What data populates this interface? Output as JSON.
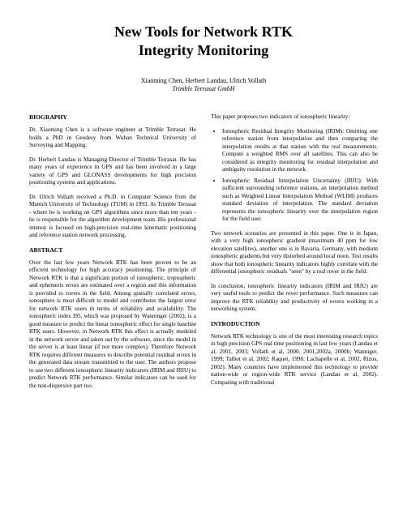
{
  "title_line1": "New Tools for Network RTK",
  "title_line2": "Integrity Monitoring",
  "authors": "Xiaoming Chen, Herbert Landau, Ulrich Vollath",
  "affiliation": "Trimble Terrasat GmbH",
  "left": {
    "biography_head": "BIOGRAPHY",
    "bio1": "Dr. Xiaoming Chen is a software engineer at Trimble Terrasat. He holds a PhD in Geodesy from Wuhan Technical University of Surveying and Mapping.",
    "bio2": "Dr. Herbert Landau is Managing Director of Trimble Terrasat. He has many years of experience in GPS and has been involved in a large variety of GPS and GLONASS developments for high precision positioning systems and applications.",
    "bio3": "Dr. Ulrich Vollath received a Ph.D. in Computer Science from the Munich University of Technology (TUM) in 1993. At Trimble Terrasat - where he is working on GPS algorithms since more than ten years - he is responsible for the algorithm development team. His professional interest is focused on high-precision real-time kinematic positioning and reference station network processing.",
    "abstract_head": "ABSTRACT",
    "abs1": "Over the last few years Network RTK has been proven to be an efficient technology for high accuracy positioning. The principle of Network RTK is that a significant portion of ionospheric, tropospheric and ephemeris errors are estimated over a region and this information is provided to rovers in the field. Among spatially correlated errors, ionosphere is most difficult to model and contributes the largest error for network RTK users in terms of reliability and availability. The ionospheric index I95, which was proposed by Wanninger (2002), is a good measure to predict the linear ionospheric effect for single baseline RTK users. However, in Network RTK this effect is actually modeled in the network server and taken out by the software, since the model in the server is at least linear (if not more complex). Therefore Network RTK requires different measures to describe potential residual errors in the generated data stream transmitted to the user. The authors propose to use two different ionospheric linearity indicators (IRIM and IRIU) to predict Network RTK performance. Similar indicators can be used for the non-dispersive part too."
  },
  "right": {
    "intro_para": "This paper proposes two indicators of ionospheric linearity:",
    "bullet1": "Ionospheric Residual Integrity Monitoring (IRIM): Omitting one reference station from interpolation and then comparing the interpolation results at that station with the real measurements. Compute a weighted RMS over all satellites. This can also be considered as integrity monitoring for residual interpolation and ambiguity resolution in the network.",
    "bullet2": "Ionospheric Residual Interpolation Uncertainty (IRIU): With sufficient surrounding reference stations, an interpolation method such as Weighted Linear Interpolation Method (WLIM) produces standard deviation of interpolation. The standard deviation represents the ionospheric linearity over the interpolation region for the field user.",
    "para2": "Two network scenarios are presented in this paper. One is in Japan, with a very high ionospheric gradient (maximum 40 ppm for low elevation satellites), another one is in Bavaria, Germany, with medium ionospheric gradients but very disturbed around local noon. Test results show that both ionospheric linearity indicators highly correlate with the differential ionospheric residuals \"seen\" by a real rover in the field.",
    "para3": "In conclusion, ionospheric linearity indicators (IRIM and IRIU) are very useful tools to predict the rover performance. Such measures can improve the RTK reliability and productivity of rovers working in a networking system.",
    "intro_head": "INTRODUCTION",
    "intro1": "Network RTK technology is one of the most interesting research topics in high precision GPS real time positioning in last few years (Landau et al, 2001, 2003; Vollath et al, 2000, 2001,2002a, 2000b; Wanniger, 1999; Talbot et al, 2002; Raquet, 1998; Lachapelle et al, 2002, Rizos, 2002). Many countries have implemented this technology to provide nation-wide or region-wide RTK service (Landau et al, 2002). Comparing with traditional"
  }
}
